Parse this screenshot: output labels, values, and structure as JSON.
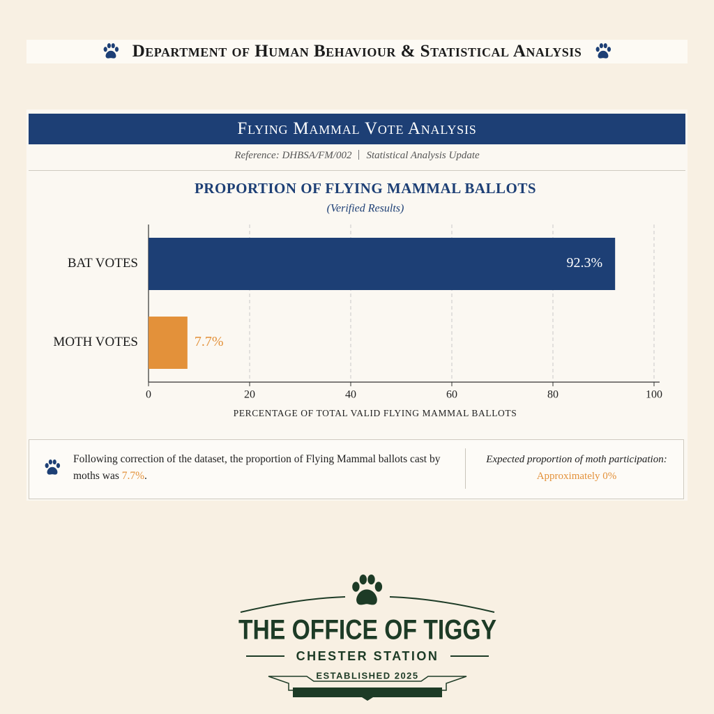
{
  "header": {
    "title": "Department of Human Behaviour & Statistical Analysis"
  },
  "panel": {
    "title": "Flying Mammal Vote Analysis",
    "reference": "Reference: DHBSA/FM/002",
    "update": "Statistical Analysis Update"
  },
  "chart_data": {
    "type": "hbar",
    "title": "PROPORTION OF FLYING MAMMAL BALLOTS",
    "subtitle": "(Verified Results)",
    "categories": [
      "BAT VOTES",
      "MOTH VOTES"
    ],
    "values": [
      92.3,
      7.7
    ],
    "value_labels": [
      "92.3%",
      "7.7%"
    ],
    "colors": [
      "#1d3f75",
      "#e3913a"
    ],
    "xlim": [
      0,
      100
    ],
    "xticks": [
      0,
      20,
      40,
      60,
      80,
      100
    ],
    "xlabel": "PERCENTAGE OF TOTAL VALID FLYING MAMMAL BALLOTS",
    "grid": true
  },
  "note": {
    "text_before": "Following correction of the dataset, the proportion of Flying Mammal ballots cast by moths was",
    "highlight": "7.7%",
    "text_after": ".",
    "expected_label": "Expected proportion of moth participation:",
    "expected_value": "Approximately 0%"
  },
  "logo": {
    "title": "THE OFFICE OF TIGGY",
    "subtitle": "CHESTER STATION",
    "established": "ESTABLISHED 2025"
  }
}
